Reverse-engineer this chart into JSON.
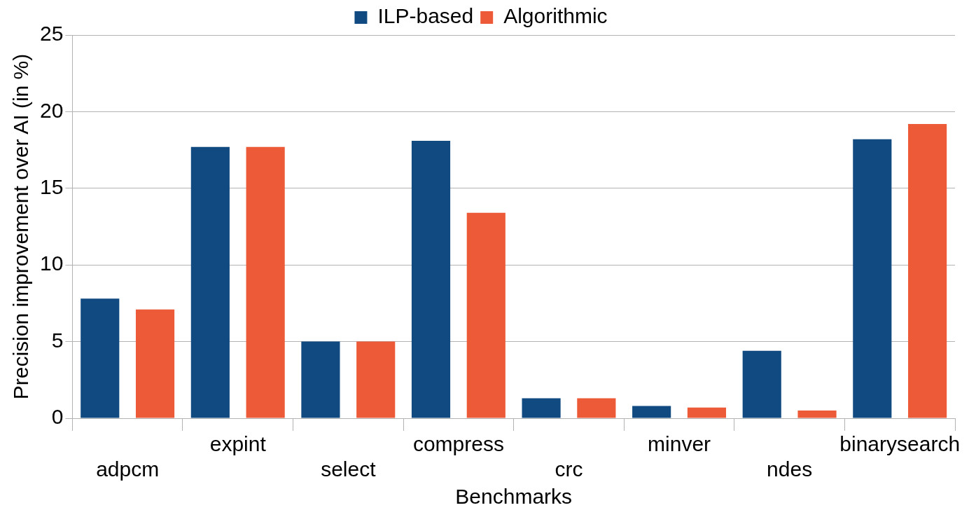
{
  "chart_data": {
    "type": "bar",
    "xlabel": "Benchmarks",
    "ylabel": "Precision improvement over AI (in %)",
    "categories": [
      "adpcm",
      "expint",
      "select",
      "compress",
      "crc",
      "minver",
      "ndes",
      "binarysearch"
    ],
    "series": [
      {
        "name": "ILP-based",
        "color": "#114a81",
        "values": [
          7.8,
          17.7,
          5.0,
          18.1,
          1.3,
          0.8,
          4.4,
          18.2
        ]
      },
      {
        "name": "Algorithmic",
        "color": "#ec5a37",
        "values": [
          7.1,
          17.7,
          5.0,
          13.4,
          1.3,
          0.7,
          0.5,
          19.2
        ]
      }
    ],
    "ylim": [
      0,
      25
    ],
    "yticks": [
      0,
      5,
      10,
      15,
      20,
      25
    ],
    "grid": "y",
    "legend": "top"
  }
}
